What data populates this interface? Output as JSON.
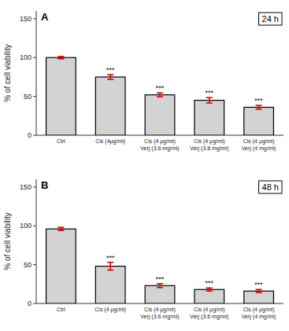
{
  "chart_data": [
    {
      "type": "bar",
      "title": "A",
      "subtitle": "24 h",
      "categories": [
        "Ctrl",
        "Cis (4μg/ml)",
        "Cis (4 μg/ml)\nVerj (3.6 mg/ml)",
        "Cis (4 μg/ml)\nVerj (3.8 mg/ml)",
        "Cis (4 μg/ml)\nVerj (4 mg/ml)"
      ],
      "values": [
        100,
        75,
        52,
        45,
        36
      ],
      "errors": [
        1.5,
        3.0,
        2.5,
        3.5,
        2.5
      ],
      "annotations": [
        null,
        "***",
        "***",
        "***",
        "***"
      ],
      "color": "#d3d3d3",
      "ylabel": "% of cell viability",
      "ylim": [
        0,
        160
      ],
      "yticks": [
        0,
        50,
        100,
        150
      ],
      "grid": false
    },
    {
      "type": "bar",
      "title": "B",
      "subtitle": "48 h",
      "categories": [
        "Ctrl",
        "Cis (4 μg/ml)",
        "Cis (4 μg/ml)\nVerj (3.6 mg/ml)",
        "Cis (4 μg/ml)\nVerj (3.6 mg/ml)",
        "Cis (4 μg/ml)\nVerj (4 mg/ml)"
      ],
      "values": [
        96,
        48,
        23,
        18,
        16
      ],
      "errors": [
        2.0,
        5.0,
        2.5,
        2.0,
        2.0
      ],
      "annotations": [
        null,
        "***",
        "***",
        "***",
        "***"
      ],
      "color": "#d3d3d3",
      "ylabel": "% of cell viability",
      "ylim": [
        0,
        160
      ],
      "yticks": [
        0,
        50,
        100,
        150
      ],
      "grid": false
    }
  ]
}
